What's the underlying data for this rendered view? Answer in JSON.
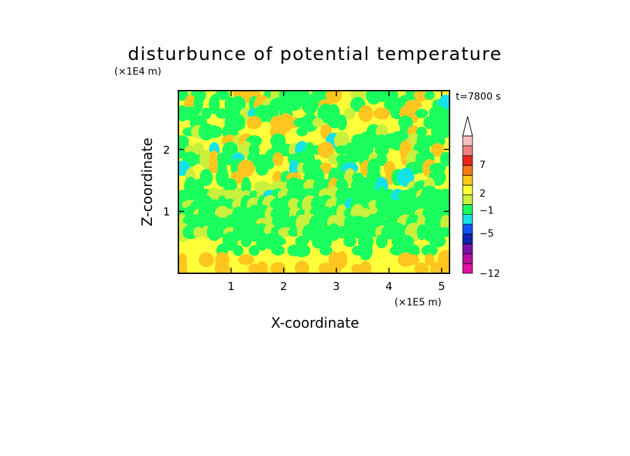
{
  "chart_data": {
    "type": "heatmap",
    "title": "disturbunce of potential temperature",
    "xlabel": "X-coordinate",
    "ylabel": "Z-coordinate",
    "x_unit": "(×1E5 m)",
    "y_unit": "(×1E4 m)",
    "time_label": "t=7800 s",
    "xlim": [
      0,
      5.15
    ],
    "ylim": [
      0,
      2.95
    ],
    "x_ticks": [
      1,
      2,
      3,
      4,
      5
    ],
    "y_ticks": [
      1,
      2
    ],
    "grid": false,
    "colorbar": {
      "labels": [
        "7",
        "2",
        "−1",
        "−5",
        "−12"
      ],
      "label_values": [
        7,
        2,
        -1,
        -5,
        -12
      ],
      "value_range": [
        -12,
        12
      ],
      "extend_max": true,
      "levels": [
        {
          "value": -12,
          "color": "#e0119f"
        },
        {
          "value": -9,
          "color": "#b80fa0"
        },
        {
          "value": -7,
          "color": "#7a13a8"
        },
        {
          "value": -5,
          "color": "#1022b0"
        },
        {
          "value": -3,
          "color": "#0f52ff"
        },
        {
          "value": -1,
          "color": "#13e2e8"
        },
        {
          "value": 0,
          "color": "#1aff5e"
        },
        {
          "value": 1,
          "color": "#c8f03c"
        },
        {
          "value": 2,
          "color": "#ffff3a"
        },
        {
          "value": 3,
          "color": "#ffc61f"
        },
        {
          "value": 5,
          "color": "#f6781c"
        },
        {
          "value": 7,
          "color": "#e8261c"
        },
        {
          "value": 9,
          "color": "#f08080"
        },
        {
          "value": 11,
          "color": "#f6c0c0"
        }
      ]
    },
    "field_description": "contour-filled disturbance field, values mostly between -1 and 3"
  }
}
